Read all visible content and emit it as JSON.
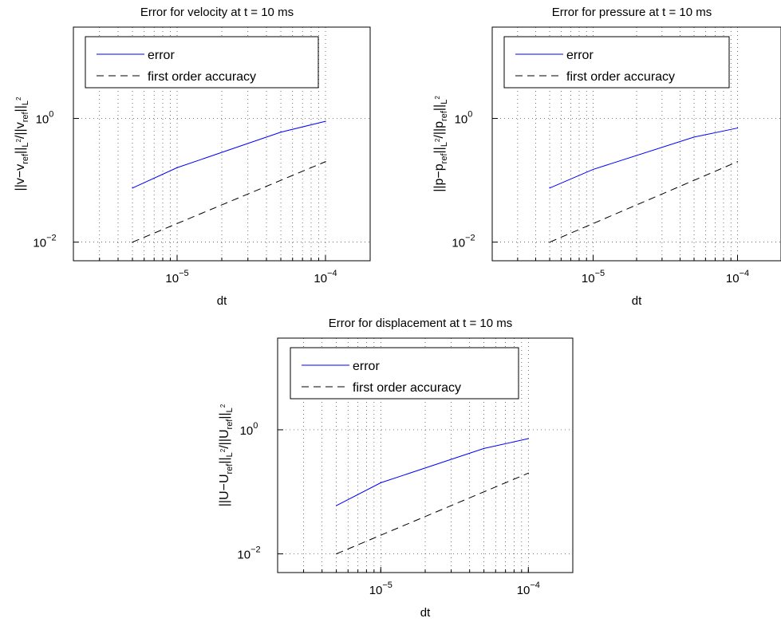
{
  "chart_data": [
    {
      "type": "line",
      "title": "Error for velocity at t = 10 ms",
      "xlabel": "dt",
      "ylabel": "||v−v_ref||_{L²}/||v_ref||_{L²}",
      "xscale": "log",
      "yscale": "log",
      "xlim": [
        2e-06,
        0.0002
      ],
      "ylim": [
        0.005,
        30
      ],
      "grid": "on (dotted, major and minor)",
      "legend_position": "top-left",
      "x_ticks": [
        "10",
        "10"
      ],
      "x_tick_exponents": [
        "−5",
        "−4"
      ],
      "y_ticks": [
        "10",
        "10"
      ],
      "y_tick_exponents": [
        "−2",
        "0"
      ],
      "series": [
        {
          "name": "error",
          "color": "#0000ff",
          "style": "solid",
          "x": [
            5e-06,
            1e-05,
            5e-05,
            0.0001
          ],
          "y": [
            0.075,
            0.16,
            0.6,
            0.9
          ]
        },
        {
          "name": "first order accuracy",
          "color": "#000000",
          "style": "dashed",
          "x": [
            5e-06,
            0.0001
          ],
          "y": [
            0.01,
            0.2
          ]
        }
      ]
    },
    {
      "type": "line",
      "title": "Error for pressure at t = 10 ms",
      "xlabel": "dt",
      "ylabel": "||p−p_ref||_{L²}/||p_ref||_{L²}",
      "xscale": "log",
      "yscale": "log",
      "xlim": [
        2e-06,
        0.0002
      ],
      "ylim": [
        0.005,
        30
      ],
      "grid": "on (dotted, major and minor)",
      "legend_position": "top-left",
      "x_ticks": [
        "10",
        "10"
      ],
      "x_tick_exponents": [
        "−5",
        "−4"
      ],
      "y_ticks": [
        "10",
        "10"
      ],
      "y_tick_exponents": [
        "−2",
        "0"
      ],
      "series": [
        {
          "name": "error",
          "color": "#0000ff",
          "style": "solid",
          "x": [
            5e-06,
            1e-05,
            5e-05,
            0.0001
          ],
          "y": [
            0.075,
            0.15,
            0.5,
            0.7
          ]
        },
        {
          "name": "first order accuracy",
          "color": "#000000",
          "style": "dashed",
          "x": [
            5e-06,
            0.0001
          ],
          "y": [
            0.01,
            0.2
          ]
        }
      ]
    },
    {
      "type": "line",
      "title": "Error for displacement at t = 10 ms",
      "xlabel": "dt",
      "ylabel": "||U−U_ref||_{L²}/||U_ref||_{L²}",
      "xscale": "log",
      "yscale": "log",
      "xlim": [
        2e-06,
        0.0002
      ],
      "ylim": [
        0.005,
        30
      ],
      "grid": "on (dotted, major and minor)",
      "legend_position": "top-left",
      "x_ticks": [
        "10",
        "10"
      ],
      "x_tick_exponents": [
        "−5",
        "−4"
      ],
      "y_ticks": [
        "10",
        "10"
      ],
      "y_tick_exponents": [
        "−2",
        "0"
      ],
      "series": [
        {
          "name": "error",
          "color": "#0000ff",
          "style": "solid",
          "x": [
            5e-06,
            1e-05,
            5e-05,
            0.0001
          ],
          "y": [
            0.06,
            0.14,
            0.5,
            0.72
          ]
        },
        {
          "name": "first order accuracy",
          "color": "#000000",
          "style": "dashed",
          "x": [
            5e-06,
            0.0001
          ],
          "y": [
            0.01,
            0.2
          ]
        }
      ]
    }
  ],
  "ylabel_parts": [
    {
      "a": "||v−v",
      "b": "ref",
      "c": "||",
      "d": "L",
      "e": "2",
      "f": "/||v",
      "g": "ref",
      "h": "||",
      "i": "L",
      "j": "2"
    },
    {
      "a": "||p−p",
      "b": "ref",
      "c": "||",
      "d": "L",
      "e": "2",
      "f": "/||p",
      "g": "ref",
      "h": "||",
      "i": "L",
      "j": "2"
    },
    {
      "a": "||U−U",
      "b": "ref",
      "c": "||",
      "d": "L",
      "e": "2",
      "f": "/||U",
      "g": "ref",
      "h": "||",
      "i": "L",
      "j": "2"
    }
  ]
}
